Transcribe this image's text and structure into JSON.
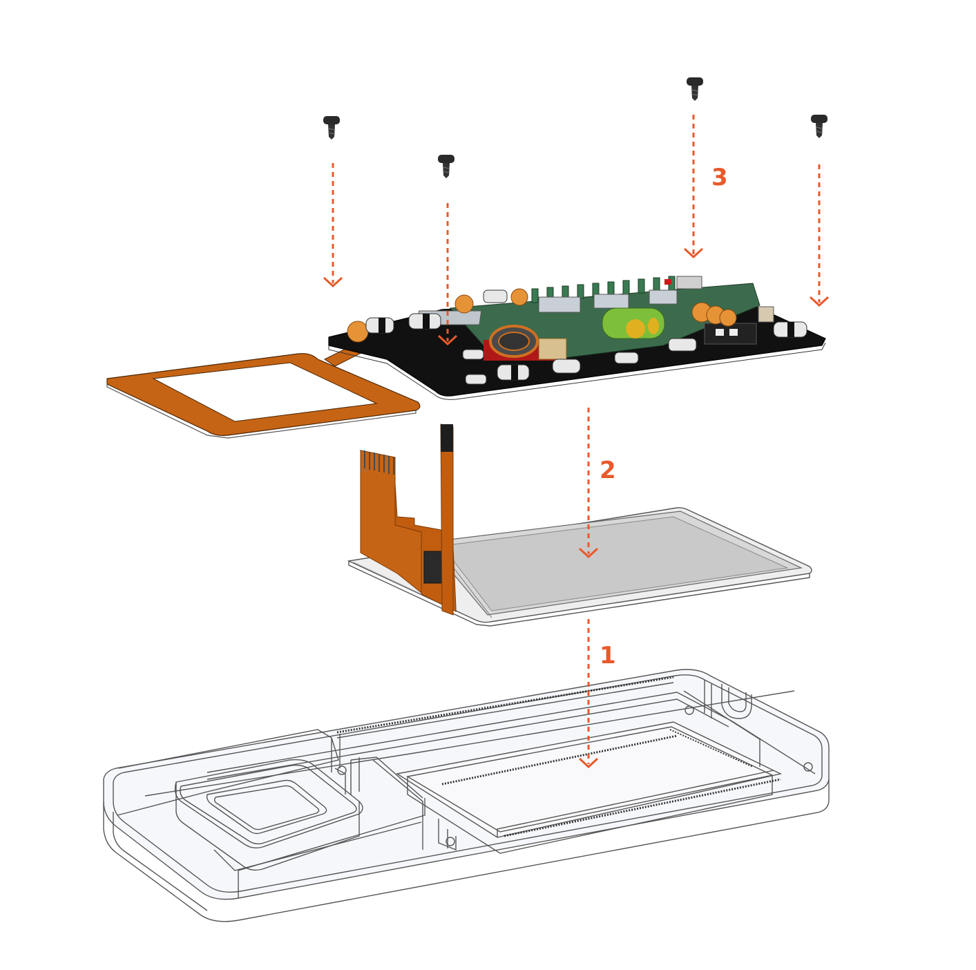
{
  "diagram": {
    "accent_color": "#e8592b",
    "flex_color": "#c25d0f",
    "board_color": "#111111",
    "steps": [
      {
        "number": "3",
        "part": "screws"
      },
      {
        "number": "2",
        "part": "circuit-board"
      },
      {
        "number": "1",
        "part": "display-panel"
      }
    ],
    "parts": [
      "screw",
      "screw",
      "screw",
      "screw",
      "circuit-board",
      "nfc-antenna-flex",
      "display-panel",
      "display-flex-cable",
      "touch-flex-cable",
      "transparent-enclosure-base"
    ]
  }
}
